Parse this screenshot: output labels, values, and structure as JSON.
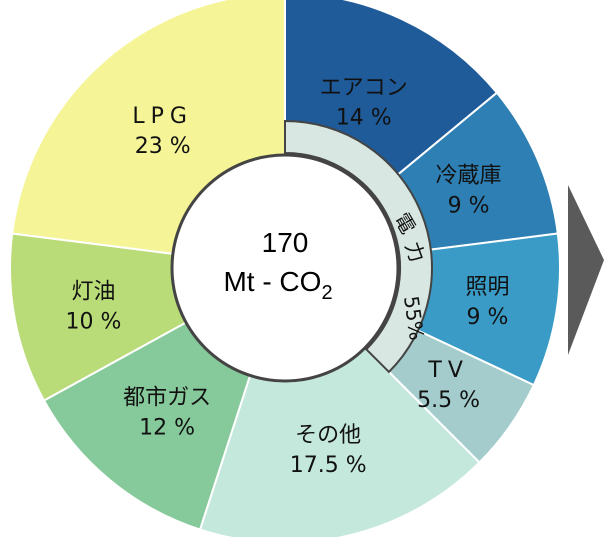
{
  "chart_data": {
    "type": "pie",
    "center_total": "170",
    "center_unit_main": "Mt - CO",
    "center_unit_sub": "2",
    "ring_label": "電力 55%",
    "ring_label_parts": [
      "電",
      "力",
      "55%"
    ],
    "slices": [
      {
        "name": "エアコン",
        "percent_label": "14 %",
        "value": 14,
        "color": "#1f5a99"
      },
      {
        "name": "冷蔵庫",
        "percent_label": "9 %",
        "value": 9,
        "color": "#2e7fb3"
      },
      {
        "name": "照明",
        "percent_label": "9 %",
        "value": 9,
        "color": "#3a9cc6"
      },
      {
        "name": "TV",
        "percent_label": "5.5 %",
        "value": 5.5,
        "color": "#a4cccc"
      },
      {
        "name": "その他",
        "percent_label": "17.5 %",
        "value": 17.5,
        "color": "#c5e8dc"
      },
      {
        "name": "都市ガス",
        "percent_label": "12 %",
        "value": 12,
        "color": "#86c99a"
      },
      {
        "name": "灯油",
        "percent_label": "10 %",
        "value": 10,
        "color": "#b9db78"
      },
      {
        "name": "LPG",
        "percent_label": "23 %",
        "value": 23,
        "color": "#f5f597"
      }
    ],
    "ring_color": "#d8e7e1",
    "arrow_color": "#5a5a5a"
  }
}
